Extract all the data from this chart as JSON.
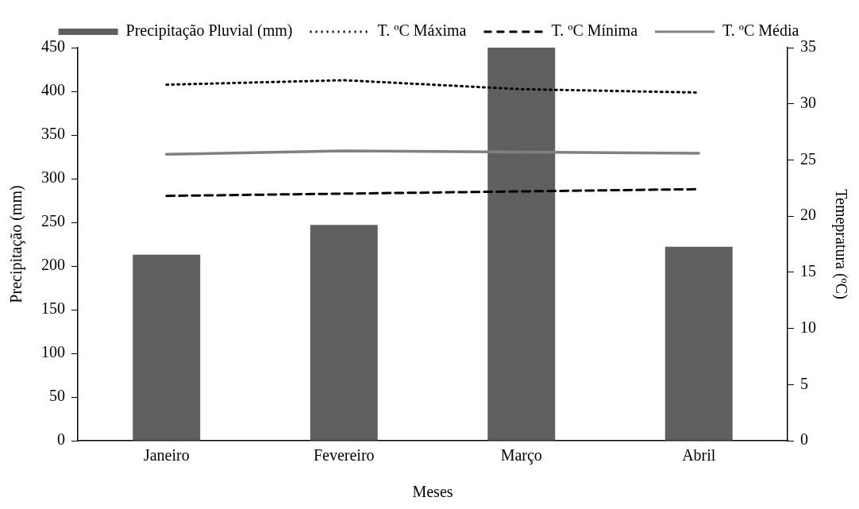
{
  "chart_data": {
    "type": "bar",
    "xlabel": "Meses",
    "ylabel": "Precipitação (mm)",
    "y2label": "Temepratura (ºC)",
    "categories": [
      "Janeiro",
      "Fevereiro",
      "Março",
      "Abril"
    ],
    "series": [
      {
        "name": "Precipitação Pluvial (mm)",
        "color": "#5f5f5f",
        "values": [
          213,
          247,
          450,
          222
        ]
      },
      {
        "name": "T. ºC Máxima",
        "type": "line",
        "axis": "y2",
        "line_style": "dotted",
        "color": "#000000",
        "values": [
          31.7,
          32.1,
          31.3,
          31.0
        ]
      },
      {
        "name": "T. ºC Mínima",
        "type": "line",
        "axis": "y2",
        "line_style": "dashed",
        "color": "#000000",
        "values": [
          21.8,
          22.0,
          22.2,
          22.4
        ]
      },
      {
        "name": "T. ºC Média",
        "type": "line",
        "axis": "y2",
        "line_style": "solid",
        "color": "#808080",
        "values": [
          25.5,
          25.8,
          25.7,
          25.6
        ]
      }
    ],
    "ylim": [
      0,
      450
    ],
    "yticks": [
      0,
      50,
      100,
      150,
      200,
      250,
      300,
      350,
      400,
      450
    ],
    "y2lim": [
      0,
      35
    ],
    "y2ticks": [
      0,
      5,
      10,
      15,
      20,
      25,
      30,
      35
    ],
    "grid": false,
    "legend": "top",
    "marker": "none"
  }
}
